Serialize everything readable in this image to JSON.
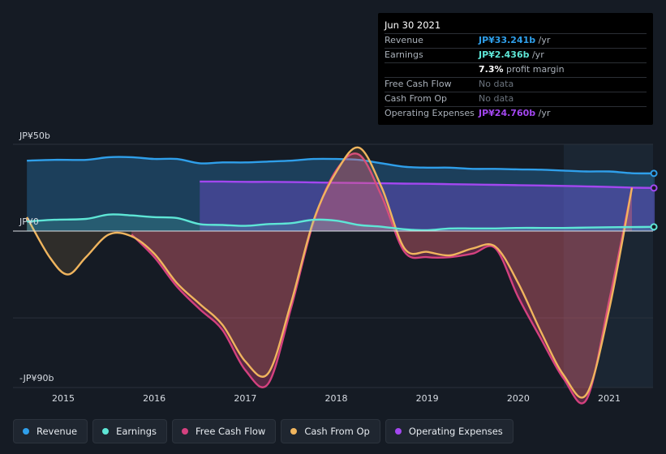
{
  "tooltip": {
    "date": "Jun 30 2021",
    "rows": [
      {
        "label": "Revenue",
        "value": "JP¥33.241b",
        "unit": " /yr",
        "color": "#2f9fea"
      },
      {
        "label": "Earnings",
        "value": "JP¥2.436b",
        "unit": " /yr",
        "color": "#5ee6d6"
      },
      {
        "label": "",
        "value": "7.3%",
        "unit": " profit margin",
        "color": "#ffffff"
      },
      {
        "label": "Free Cash Flow",
        "value": "No data",
        "unit": "",
        "color": "#6b737d"
      },
      {
        "label": "Cash From Op",
        "value": "No data",
        "unit": "",
        "color": "#6b737d"
      },
      {
        "label": "Operating Expenses",
        "value": "JP¥24.760b",
        "unit": " /yr",
        "color": "#a347f0"
      }
    ]
  },
  "legend": [
    {
      "label": "Revenue",
      "color": "#2f9fea"
    },
    {
      "label": "Earnings",
      "color": "#5ee6d6"
    },
    {
      "label": "Free Cash Flow",
      "color": "#d4417f"
    },
    {
      "label": "Cash From Op",
      "color": "#f0b55e"
    },
    {
      "label": "Operating Expenses",
      "color": "#a347f0"
    }
  ],
  "chart_data": {
    "type": "area",
    "y_axis_labels": {
      "top": "JP¥50b",
      "zero": "JP¥0",
      "bottom": "-JP¥90b"
    },
    "ylim": [
      -90,
      50
    ],
    "xlim": [
      2014.6,
      2021.5
    ],
    "x_ticks": [
      "2015",
      "2016",
      "2017",
      "2018",
      "2019",
      "2020",
      "2021"
    ],
    "x_tick_values": [
      2015,
      2016,
      2017,
      2018,
      2019,
      2020,
      2021
    ],
    "highlight_start": 2020.5,
    "series": [
      {
        "name": "Revenue",
        "color": "#2f9fea",
        "fill": true,
        "x": [
          2014.6,
          2014.9,
          2015.25,
          2015.5,
          2015.75,
          2016.0,
          2016.25,
          2016.5,
          2016.75,
          2017.0,
          2017.25,
          2017.5,
          2017.75,
          2018.0,
          2018.25,
          2018.5,
          2018.75,
          2019.0,
          2019.25,
          2019.5,
          2019.75,
          2020.0,
          2020.25,
          2020.5,
          2020.75,
          2021.0,
          2021.25,
          2021.5
        ],
        "y": [
          40.5,
          41.0,
          41.0,
          42.5,
          42.5,
          41.5,
          41.5,
          39.0,
          39.5,
          39.5,
          40.0,
          40.5,
          41.5,
          41.5,
          41.0,
          39.0,
          37.0,
          36.5,
          36.5,
          35.8,
          35.8,
          35.5,
          35.3,
          34.8,
          34.3,
          34.3,
          33.3,
          33.2
        ]
      },
      {
        "name": "Earnings",
        "color": "#5ee6d6",
        "fill": true,
        "x": [
          2014.6,
          2014.9,
          2015.25,
          2015.5,
          2015.75,
          2016.0,
          2016.25,
          2016.5,
          2016.75,
          2017.0,
          2017.25,
          2017.5,
          2017.75,
          2018.0,
          2018.25,
          2018.5,
          2018.75,
          2019.0,
          2019.25,
          2019.5,
          2019.75,
          2020.0,
          2020.25,
          2020.5,
          2020.75,
          2021.0,
          2021.25,
          2021.5
        ],
        "y": [
          5.5,
          6.5,
          7.0,
          9.5,
          9.0,
          8.0,
          7.5,
          4.0,
          3.5,
          3.0,
          4.0,
          4.5,
          6.5,
          6.0,
          3.5,
          2.5,
          1.0,
          0.5,
          1.5,
          1.5,
          1.5,
          1.8,
          1.8,
          1.8,
          2.0,
          2.2,
          2.3,
          2.4
        ]
      },
      {
        "name": "Free Cash Flow",
        "color": "#d4417f",
        "fill": true,
        "x": [
          2015.75,
          2016.0,
          2016.25,
          2016.5,
          2016.75,
          2017.0,
          2017.25,
          2017.5,
          2017.75,
          2018.0,
          2018.25,
          2018.5,
          2018.75,
          2019.0,
          2019.25,
          2019.5,
          2019.75,
          2020.0,
          2020.25,
          2020.5,
          2020.75,
          2021.0,
          2021.25
        ],
        "y": [
          -2,
          -15,
          -32,
          -45,
          -57,
          -80,
          -88,
          -45,
          5,
          35,
          44,
          20,
          -12,
          -15,
          -15,
          -13,
          -10,
          -38,
          -62,
          -85,
          -97,
          -40,
          25
        ]
      },
      {
        "name": "Cash From Op",
        "color": "#f0b55e",
        "fill": true,
        "x": [
          2014.6,
          2014.85,
          2015.05,
          2015.25,
          2015.5,
          2015.75,
          2016.0,
          2016.25,
          2016.5,
          2016.75,
          2017.0,
          2017.25,
          2017.5,
          2017.75,
          2018.0,
          2018.25,
          2018.5,
          2018.75,
          2019.0,
          2019.25,
          2019.5,
          2019.75,
          2020.0,
          2020.25,
          2020.5,
          2020.75,
          2021.0,
          2021.25
        ],
        "y": [
          8,
          -15,
          -25,
          -15,
          -2,
          -3,
          -13,
          -30,
          -42,
          -54,
          -75,
          -82,
          -42,
          6,
          34,
          48,
          25,
          -10,
          -12,
          -14,
          -10,
          -9,
          -30,
          -58,
          -83,
          -94,
          -45,
          25
        ]
      },
      {
        "name": "Operating Expenses",
        "color": "#a347f0",
        "fill": true,
        "x": [
          2016.5,
          2016.75,
          2017.0,
          2017.25,
          2017.5,
          2017.75,
          2018.0,
          2018.25,
          2018.5,
          2018.75,
          2019.0,
          2019.25,
          2019.5,
          2019.75,
          2020.0,
          2020.25,
          2020.5,
          2020.75,
          2021.0,
          2021.25,
          2021.5
        ],
        "y": [
          28.5,
          28.5,
          28.3,
          28.3,
          28.2,
          28.0,
          27.8,
          27.7,
          27.5,
          27.3,
          27.2,
          27.0,
          26.8,
          26.6,
          26.4,
          26.2,
          26.0,
          25.7,
          25.4,
          25.0,
          24.8
        ]
      }
    ]
  }
}
